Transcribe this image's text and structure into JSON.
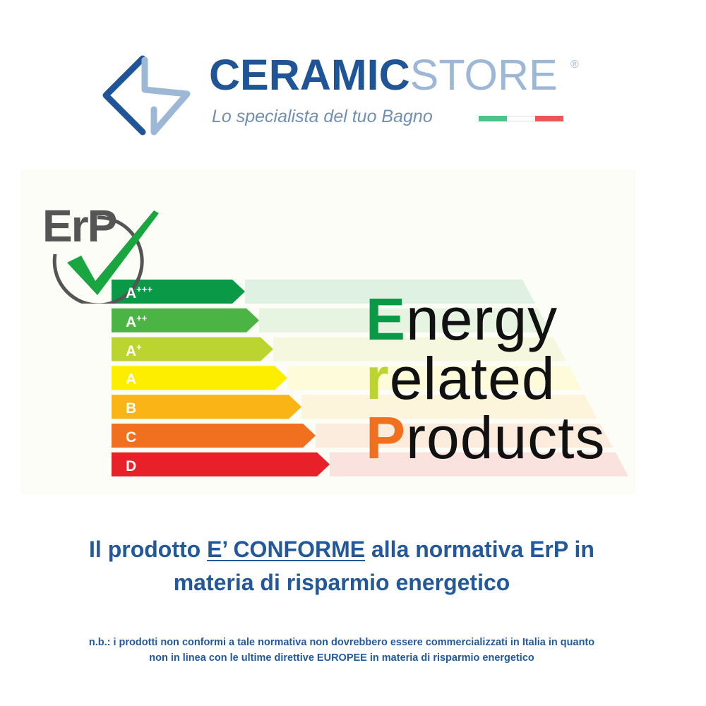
{
  "logo": {
    "brand_part1": "CERAMIC",
    "brand_part2": "STORE",
    "registered": "®",
    "tagline": "Lo specialista del tuo Bagno",
    "flag_colors": [
      "#4cc38a",
      "#ffffff",
      "#ee5555"
    ],
    "colors": {
      "dark": "#1f5496",
      "light": "#9db7d6"
    }
  },
  "erp_graphic": {
    "badge_text": "ErP",
    "badge_icon": "checkmark-icon",
    "classes": [
      {
        "label": "A",
        "sup": "+++",
        "color": "#0a9a47"
      },
      {
        "label": "A",
        "sup": "++",
        "color": "#4cb345"
      },
      {
        "label": "A",
        "sup": "+",
        "color": "#bcd430"
      },
      {
        "label": "A",
        "sup": "",
        "color": "#fdee00"
      },
      {
        "label": "B",
        "sup": "",
        "color": "#fbb415"
      },
      {
        "label": "C",
        "sup": "",
        "color": "#f07020"
      },
      {
        "label": "D",
        "sup": "",
        "color": "#e8202a"
      }
    ],
    "words": [
      {
        "first": "E",
        "rest": "nergy",
        "color": "#0a9a47"
      },
      {
        "first": "r",
        "rest": "elated",
        "color": "#bcd430"
      },
      {
        "first": "P",
        "rest": "roducts",
        "color": "#f07020"
      }
    ]
  },
  "headline": {
    "before": "Il prodotto ",
    "underlined": "E’ CONFORME",
    "after": " alla normativa ErP in",
    "line2": "materia di risparmio energetico"
  },
  "note": {
    "line1": "n.b.: i prodotti non conformi a tale normativa non dovrebbero essere commercializzati in Italia in quanto",
    "line2_before": "non in linea con le ultime direttive ",
    "line2_bold": "EUROPEE",
    "line2_after": " in materia di risparmio energetico"
  }
}
